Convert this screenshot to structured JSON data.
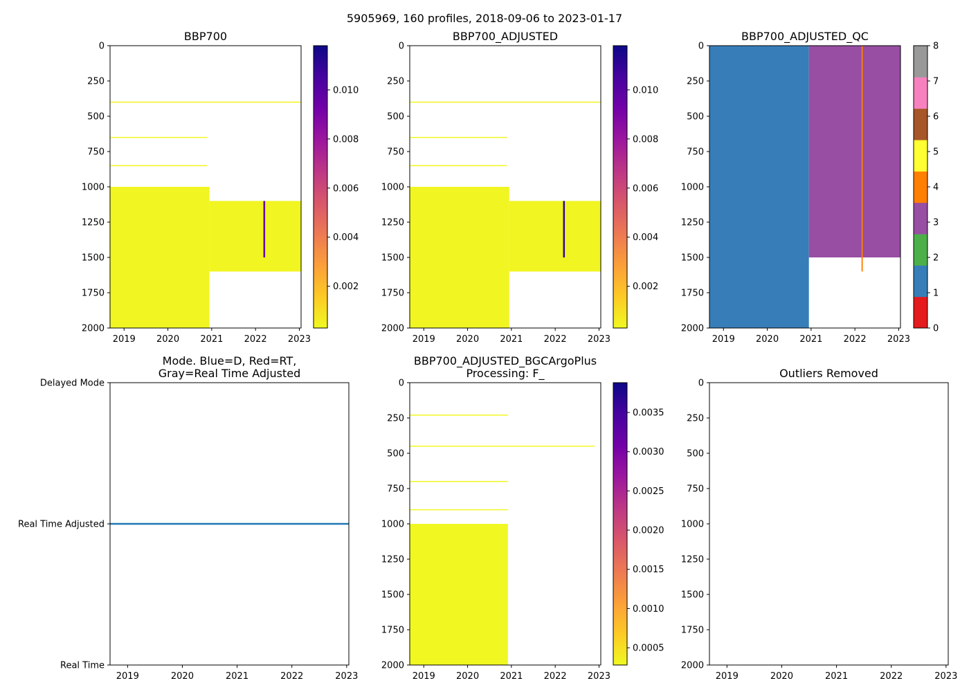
{
  "figure": {
    "suptitle": "5905969, 160 profiles, 2018-09-06 to 2023-01-17"
  },
  "colors": {
    "plasma": [
      "#f0f921",
      "#fdca26",
      "#fb9f3a",
      "#ed7953",
      "#d8576b",
      "#bd3786",
      "#9c179e",
      "#7201a8",
      "#46039f",
      "#0d0887"
    ],
    "qc": [
      "#e41a1c",
      "#377eb8",
      "#4daf4a",
      "#984ea3",
      "#ff7f00",
      "#ffff33",
      "#a65628",
      "#f781bf",
      "#999999"
    ],
    "mode_line": "#1f77b4",
    "background": "#ffffff"
  },
  "chart_data": [
    {
      "id": "bbp700",
      "type": "heatmap",
      "title": "BBP700",
      "xlabel": "",
      "ylabel": "",
      "x_ticks": [
        "2019",
        "2020",
        "2021",
        "2022",
        "2023"
      ],
      "x_tick_values": [
        2019,
        2020,
        2021,
        2022,
        2023
      ],
      "xlim": [
        2018.68,
        2023.04
      ],
      "y_ticks": [
        "0",
        "250",
        "500",
        "750",
        "1000",
        "1250",
        "1500",
        "1750",
        "2000"
      ],
      "ylim": [
        2000,
        0
      ],
      "colorbar": {
        "ticks": [
          "0.002",
          "0.004",
          "0.006",
          "0.008",
          "0.010"
        ],
        "tick_values": [
          0.002,
          0.004,
          0.006,
          0.008,
          0.01
        ],
        "range": [
          0.0003,
          0.0118
        ],
        "cmap": "plasma_r"
      },
      "regions": [
        {
          "t0": 2018.68,
          "t1": 2020.95,
          "z0": 1000,
          "z1": 2000,
          "value": 0.0004
        },
        {
          "t0": 2020.95,
          "t1": 2023.04,
          "z0": 1100,
          "z1": 1600,
          "value": 0.0004
        },
        {
          "t0": 2022.18,
          "t1": 2022.22,
          "z0": 1100,
          "z1": 1500,
          "value": 0.0095
        }
      ],
      "lines": [
        {
          "t0": 2018.68,
          "t1": 2023.04,
          "z": 400,
          "value": 0.0004
        },
        {
          "t0": 2018.68,
          "t1": 2020.9,
          "z": 650,
          "value": 0.0004
        },
        {
          "t0": 2018.68,
          "t1": 2020.9,
          "z": 850,
          "value": 0.0004
        }
      ]
    },
    {
      "id": "bbp700_adjusted",
      "type": "heatmap",
      "title": "BBP700_ADJUSTED",
      "xlabel": "",
      "ylabel": "",
      "x_ticks": [
        "2019",
        "2020",
        "2021",
        "2022",
        "2023"
      ],
      "x_tick_values": [
        2019,
        2020,
        2021,
        2022,
        2023
      ],
      "xlim": [
        2018.68,
        2023.04
      ],
      "y_ticks": [
        "0",
        "250",
        "500",
        "750",
        "1000",
        "1250",
        "1500",
        "1750",
        "2000"
      ],
      "ylim": [
        2000,
        0
      ],
      "colorbar": {
        "ticks": [
          "0.002",
          "0.004",
          "0.006",
          "0.008",
          "0.010"
        ],
        "tick_values": [
          0.002,
          0.004,
          0.006,
          0.008,
          0.01
        ],
        "range": [
          0.0003,
          0.0118
        ],
        "cmap": "plasma_r"
      },
      "regions": [
        {
          "t0": 2018.68,
          "t1": 2020.95,
          "z0": 1000,
          "z1": 2000,
          "value": 0.0004
        },
        {
          "t0": 2020.95,
          "t1": 2023.04,
          "z0": 1100,
          "z1": 1600,
          "value": 0.0004
        },
        {
          "t0": 2022.18,
          "t1": 2022.22,
          "z0": 1100,
          "z1": 1500,
          "value": 0.011
        }
      ],
      "lines": [
        {
          "t0": 2018.68,
          "t1": 2023.04,
          "z": 400,
          "value": 0.0004
        },
        {
          "t0": 2018.68,
          "t1": 2020.9,
          "z": 650,
          "value": 0.0004
        },
        {
          "t0": 2018.68,
          "t1": 2020.9,
          "z": 850,
          "value": 0.0004
        }
      ]
    },
    {
      "id": "bbp700_adjusted_qc",
      "type": "heatmap",
      "title": "BBP700_ADJUSTED_QC",
      "xlabel": "",
      "ylabel": "",
      "x_ticks": [
        "2019",
        "2020",
        "2021",
        "2022",
        "2023"
      ],
      "x_tick_values": [
        2019,
        2020,
        2021,
        2022,
        2023
      ],
      "xlim": [
        2018.68,
        2023.04
      ],
      "y_ticks": [
        "0",
        "250",
        "500",
        "750",
        "1000",
        "1250",
        "1500",
        "1750",
        "2000"
      ],
      "ylim": [
        2000,
        0
      ],
      "colorbar": {
        "ticks": [
          "0",
          "1",
          "2",
          "3",
          "4",
          "5",
          "6",
          "7",
          "8"
        ],
        "tick_values": [
          0,
          1,
          2,
          3,
          4,
          5,
          6,
          7,
          8
        ],
        "range": [
          0,
          9
        ],
        "cmap": "qc"
      },
      "qc_regions": [
        {
          "t0": 2018.68,
          "t1": 2020.95,
          "z0": 0,
          "z1": 2000,
          "flag": 1
        },
        {
          "t0": 2020.95,
          "t1": 2023.04,
          "z0": 0,
          "z1": 1500,
          "flag": 3
        },
        {
          "t0": 2022.15,
          "t1": 2022.18,
          "z0": 0,
          "z1": 1600,
          "flag": 4
        }
      ]
    },
    {
      "id": "mode",
      "type": "line",
      "title": "Mode. Blue=D, Red=RT,\nGray=Real Time Adjusted",
      "xlabel": "",
      "ylabel": "",
      "x_ticks": [
        "2019",
        "2020",
        "2021",
        "2022",
        "2023"
      ],
      "x_tick_values": [
        2019,
        2020,
        2021,
        2022,
        2023
      ],
      "xlim": [
        2018.68,
        2023.04
      ],
      "y_ticks": [
        "Delayed Mode",
        "Real Time Adjusted",
        "Real Time"
      ],
      "y_tick_values": [
        2,
        1,
        0
      ],
      "ylim": [
        0,
        2
      ],
      "series": [
        {
          "name": "mode",
          "x": [
            2018.68,
            2023.04
          ],
          "y": [
            1,
            1
          ]
        }
      ]
    },
    {
      "id": "bgcargoplus",
      "type": "heatmap",
      "title": "BBP700_ADJUSTED_BGCArgoPlus\nProcessing: F_",
      "xlabel": "",
      "ylabel": "",
      "x_ticks": [
        "2019",
        "2020",
        "2021",
        "2022",
        "2023"
      ],
      "x_tick_values": [
        2019,
        2020,
        2021,
        2022,
        2023
      ],
      "xlim": [
        2018.68,
        2023.04
      ],
      "y_ticks": [
        "0",
        "250",
        "500",
        "750",
        "1000",
        "1250",
        "1500",
        "1750",
        "2000"
      ],
      "ylim": [
        2000,
        0
      ],
      "colorbar": {
        "ticks": [
          "0.0005",
          "0.0010",
          "0.0015",
          "0.0020",
          "0.0025",
          "0.0030",
          "0.0035"
        ],
        "tick_values": [
          0.0005,
          0.001,
          0.0015,
          0.002,
          0.0025,
          0.003,
          0.0035
        ],
        "range": [
          0.00028,
          0.00388
        ],
        "cmap": "plasma_r"
      },
      "regions": [
        {
          "t0": 2018.68,
          "t1": 2020.92,
          "z0": 1000,
          "z1": 2000,
          "value": 0.0003
        }
      ],
      "lines": [
        {
          "t0": 2018.68,
          "t1": 2020.92,
          "z": 230,
          "value": 0.0003
        },
        {
          "t0": 2018.68,
          "t1": 2022.9,
          "z": 450,
          "value": 0.0003
        },
        {
          "t0": 2018.68,
          "t1": 2020.92,
          "z": 700,
          "value": 0.0003
        },
        {
          "t0": 2018.68,
          "t1": 2020.92,
          "z": 900,
          "value": 0.0003
        }
      ]
    },
    {
      "id": "outliers",
      "type": "scatter",
      "title": "Outliers Removed",
      "xlabel": "",
      "ylabel": "",
      "x_ticks": [
        "2019",
        "2020",
        "2021",
        "2022",
        "2023"
      ],
      "x_tick_values": [
        2019,
        2020,
        2021,
        2022,
        2023
      ],
      "xlim": [
        2018.68,
        2023.04
      ],
      "y_ticks": [
        "0",
        "250",
        "500",
        "750",
        "1000",
        "1250",
        "1500",
        "1750",
        "2000"
      ],
      "ylim": [
        2000,
        0
      ],
      "series": []
    }
  ]
}
